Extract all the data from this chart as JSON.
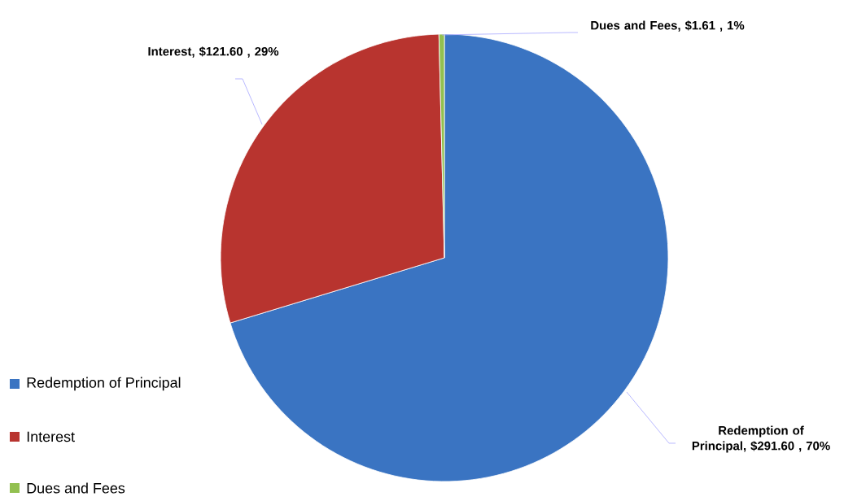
{
  "chart_data": {
    "type": "pie",
    "categories": [
      "Redemption of Principal",
      "Interest",
      "Dues and Fees"
    ],
    "values": [
      291.6,
      121.6,
      1.61
    ],
    "colors": [
      "#3a74c2",
      "#b8342f",
      "#92c050"
    ],
    "value_labels": [
      "Redemption of Principal,  $291.60 , 70%",
      "Interest,  $121.60 , 29%",
      "Dues and Fees,  $1.61 , 1%"
    ],
    "legend": "bottom left"
  }
}
